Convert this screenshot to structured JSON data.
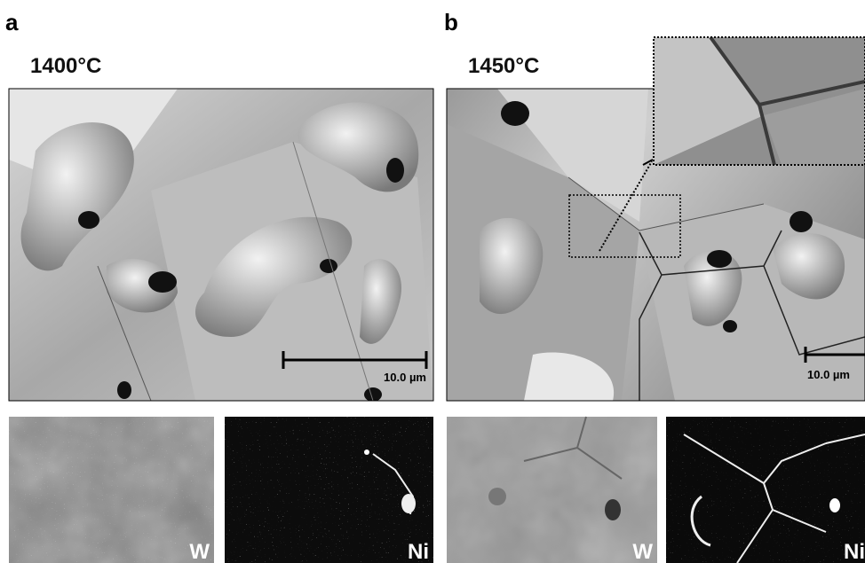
{
  "panels": [
    {
      "label": "a",
      "temperature": "1400°C",
      "scale_bar": "10.0 µm",
      "maps": [
        "W",
        "Ni"
      ]
    },
    {
      "label": "b",
      "temperature": "1450°C",
      "scale_bar": "10.0 µm",
      "maps": [
        "W",
        "Ni"
      ]
    }
  ]
}
